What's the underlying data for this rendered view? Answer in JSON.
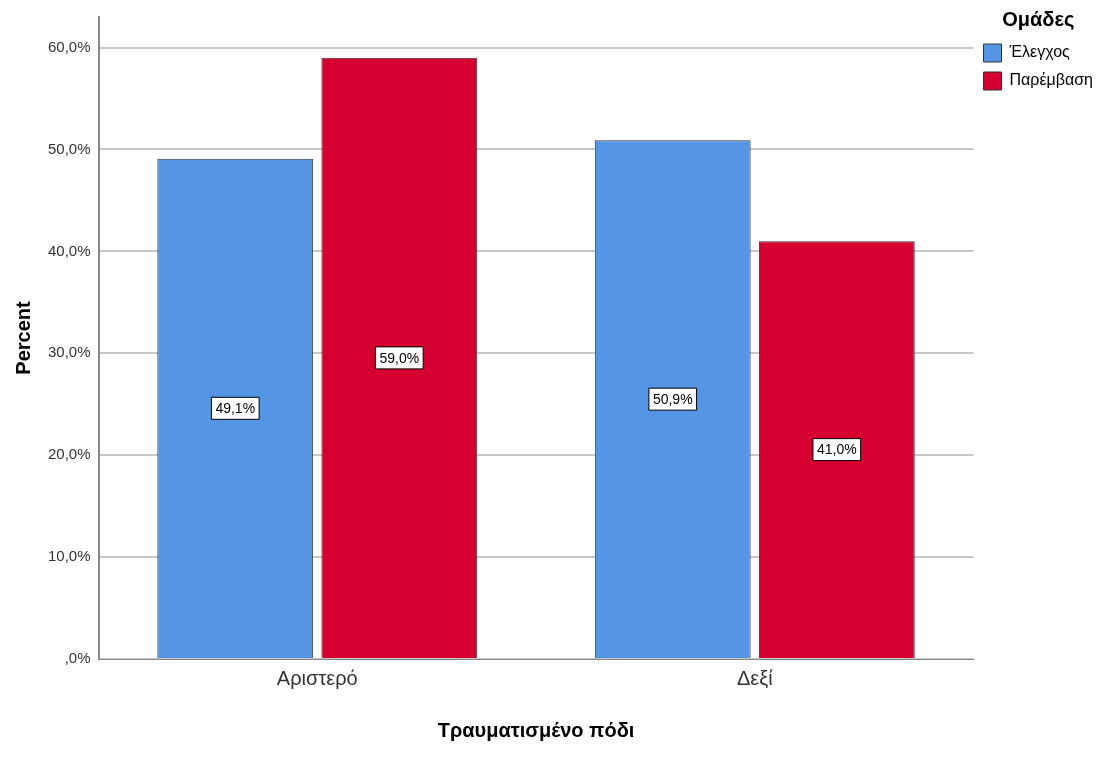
{
  "chart_data": {
    "type": "bar",
    "xlabel": "Τραυματισμένο πόδι",
    "ylabel": "Percent",
    "legend_title": "Ομάδες",
    "categories": [
      "Αριστερό",
      "Δεξί"
    ],
    "series": [
      {
        "name": "Έλεγχος",
        "color": "#5596e4",
        "values": [
          49.1,
          50.9
        ],
        "value_labels": [
          "49,1%",
          "50,9%"
        ]
      },
      {
        "name": "Παρέμβαση",
        "color": "#d5002f",
        "values": [
          59.0,
          41.0
        ],
        "value_labels": [
          "59,0%",
          "41,0%"
        ]
      }
    ],
    "ylim": [
      0,
      63
    ],
    "yticks": [
      {
        "value": 0,
        "label": ",0%"
      },
      {
        "value": 10,
        "label": "10,0%"
      },
      {
        "value": 20,
        "label": "20,0%"
      },
      {
        "value": 30,
        "label": "30,0%"
      },
      {
        "value": 40,
        "label": "40,0%"
      },
      {
        "value": 50,
        "label": "50,0%"
      },
      {
        "value": 60,
        "label": "60,0%"
      }
    ],
    "grid": "y",
    "legend": "top right"
  }
}
